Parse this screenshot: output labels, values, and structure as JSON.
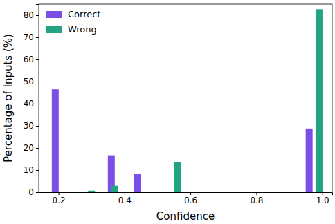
{
  "chart_data": {
    "type": "bar",
    "x_label": "Confidence",
    "y_label": "Percentage of Inputs (%)",
    "series": [
      {
        "name": "Correct",
        "color": "#7b4fe6",
        "x": [
          0.19,
          0.36,
          0.44,
          0.96
        ],
        "values": [
          46.5,
          16.7,
          8.3,
          28.8
        ]
      },
      {
        "name": "Wrong",
        "color": "#22a483",
        "x": [
          0.3,
          0.37,
          0.56,
          0.99
        ],
        "values": [
          0.7,
          2.9,
          13.6,
          82.7
        ]
      }
    ],
    "xlim": [
      0.14,
      1.03
    ],
    "xticks": [
      0.2,
      0.4,
      0.6,
      0.8,
      {
        "value": 1,
        "label": "1.0"
      }
    ],
    "ylim": [
      0,
      85
    ],
    "yticks": [
      0,
      10,
      20,
      30,
      40,
      50,
      60,
      70,
      80
    ],
    "legend": "top-left",
    "grid": false
  }
}
